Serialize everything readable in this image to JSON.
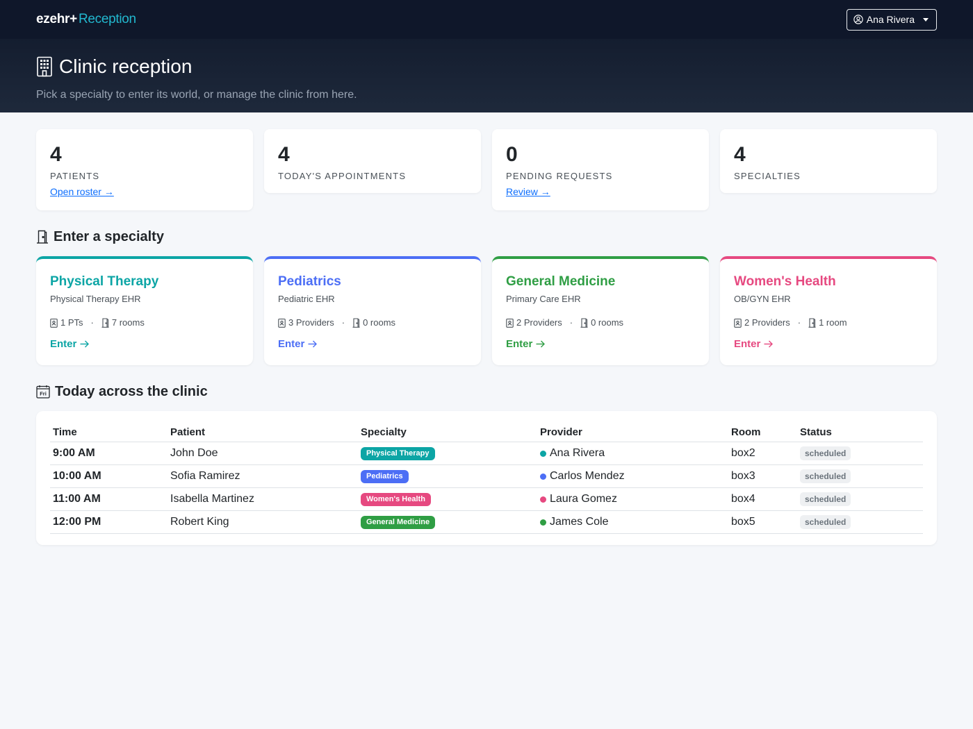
{
  "navbar": {
    "brand": "ezehr+",
    "brand_sub": "Reception",
    "user_name": "Ana Rivera"
  },
  "hero": {
    "title": "Clinic reception",
    "subtitle": "Pick a specialty to enter its world, or manage the clinic from here."
  },
  "stats": [
    {
      "value": "4",
      "label": "PATIENTS",
      "link": "Open roster →"
    },
    {
      "value": "4",
      "label": "TODAY'S APPOINTMENTS",
      "link": ""
    },
    {
      "value": "0",
      "label": "PENDING REQUESTS",
      "link": "Review →"
    },
    {
      "value": "4",
      "label": "SPECIALTIES",
      "link": ""
    }
  ],
  "specialties_section": {
    "title": "Enter a specialty"
  },
  "specialties": [
    {
      "name": "Physical Therapy",
      "ehr": "Physical Therapy EHR",
      "providers": "1 PTs",
      "rooms": "7 rooms",
      "enter": "Enter",
      "color": "#0ca5a5"
    },
    {
      "name": "Pediatrics",
      "ehr": "Pediatric EHR",
      "providers": "3 Providers",
      "rooms": "0 rooms",
      "enter": "Enter",
      "color": "#4c6ef5"
    },
    {
      "name": "General Medicine",
      "ehr": "Primary Care EHR",
      "providers": "2 Providers",
      "rooms": "0 rooms",
      "enter": "Enter",
      "color": "#2f9e44"
    },
    {
      "name": "Women's Health",
      "ehr": "OB/GYN EHR",
      "providers": "2 Providers",
      "rooms": "1 room",
      "enter": "Enter",
      "color": "#e64980"
    }
  ],
  "today_section": {
    "title": "Today across the clinic",
    "calendar_day": "Fri"
  },
  "table": {
    "headers": {
      "time": "Time",
      "patient": "Patient",
      "specialty": "Specialty",
      "provider": "Provider",
      "room": "Room",
      "status": "Status"
    },
    "rows": [
      {
        "time": "9:00 AM",
        "patient": "John Doe",
        "specialty": "Physical Therapy",
        "color": "#0ca5a5",
        "provider": "Ana Rivera",
        "room": "box2",
        "status": "scheduled"
      },
      {
        "time": "10:00 AM",
        "patient": "Sofia Ramirez",
        "specialty": "Pediatrics",
        "color": "#4c6ef5",
        "provider": "Carlos Mendez",
        "room": "box3",
        "status": "scheduled"
      },
      {
        "time": "11:00 AM",
        "patient": "Isabella Martinez",
        "specialty": "Women's Health",
        "color": "#e64980",
        "provider": "Laura Gomez",
        "room": "box4",
        "status": "scheduled"
      },
      {
        "time": "12:00 PM",
        "patient": "Robert King",
        "specialty": "General Medicine",
        "color": "#2f9e44",
        "provider": "James Cole",
        "room": "box5",
        "status": "scheduled"
      }
    ]
  }
}
